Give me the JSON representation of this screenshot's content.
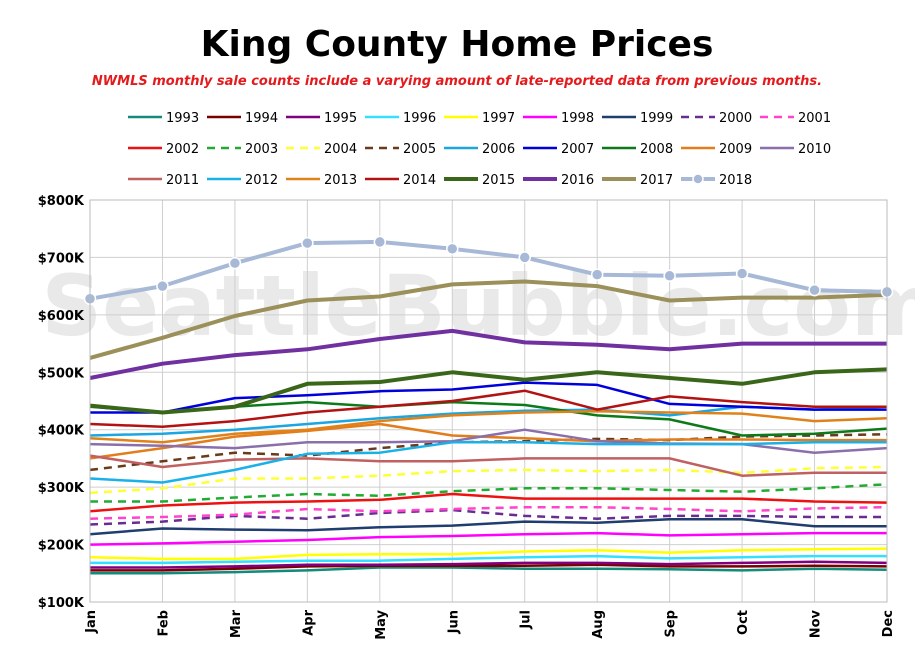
{
  "chart_data": {
    "type": "line",
    "title": "King County Home Prices",
    "subtitle": "NWMLS monthly sale counts include a varying amount of late-reported  data from previous months.",
    "watermark": "SeattleBubble.com",
    "categories": [
      "Jan",
      "Feb",
      "Mar",
      "Apr",
      "May",
      "Jun",
      "Jul",
      "Aug",
      "Sep",
      "Oct",
      "Nov",
      "Dec"
    ],
    "ylim": [
      100000,
      800000
    ],
    "yticks": [
      {
        "value": 100000,
        "label": "$100K"
      },
      {
        "value": 200000,
        "label": "$200K"
      },
      {
        "value": 300000,
        "label": "$300K"
      },
      {
        "value": 400000,
        "label": "$400K"
      },
      {
        "value": 500000,
        "label": "$500K"
      },
      {
        "value": 600000,
        "label": "$600K"
      },
      {
        "value": 700000,
        "label": "$700K"
      },
      {
        "value": 800000,
        "label": "$800K"
      }
    ],
    "grid": true,
    "legend_position": "top",
    "series": [
      {
        "name": "1993",
        "color": "#138a7a",
        "dash": "solid",
        "values": [
          150000,
          150000,
          152000,
          155000,
          160000,
          160000,
          158000,
          158000,
          157000,
          155000,
          158000,
          156000
        ]
      },
      {
        "name": "1994",
        "color": "#7a0000",
        "dash": "solid",
        "values": [
          155000,
          155000,
          158000,
          162000,
          163000,
          163000,
          163000,
          165000,
          162000,
          162000,
          163000,
          162000
        ]
      },
      {
        "name": "1995",
        "color": "#800080",
        "dash": "solid",
        "values": [
          160000,
          160000,
          162000,
          165000,
          165000,
          166000,
          168000,
          168000,
          166000,
          168000,
          170000,
          168000
        ]
      },
      {
        "name": "1996",
        "color": "#33e0ff",
        "dash": "solid",
        "values": [
          168000,
          168000,
          170000,
          172000,
          172000,
          175000,
          178000,
          180000,
          176000,
          178000,
          180000,
          180000
        ]
      },
      {
        "name": "1997",
        "color": "#ffff00",
        "dash": "solid",
        "values": [
          178000,
          175000,
          175000,
          182000,
          183000,
          183000,
          188000,
          190000,
          186000,
          190000,
          192000,
          193000
        ]
      },
      {
        "name": "1998",
        "color": "#ff00ff",
        "dash": "solid",
        "values": [
          200000,
          202000,
          205000,
          208000,
          213000,
          215000,
          218000,
          220000,
          216000,
          218000,
          220000,
          220000
        ]
      },
      {
        "name": "1999",
        "color": "#1f3d6e",
        "dash": "solid",
        "values": [
          218000,
          228000,
          226000,
          225000,
          230000,
          233000,
          240000,
          238000,
          244000,
          244000,
          232000,
          232000
        ]
      },
      {
        "name": "2000",
        "color": "#6a2c91",
        "dash": "dashed",
        "values": [
          235000,
          240000,
          250000,
          245000,
          255000,
          260000,
          250000,
          245000,
          250000,
          250000,
          248000,
          248000
        ]
      },
      {
        "name": "2001",
        "color": "#ff44cc",
        "dash": "dashed",
        "values": [
          245000,
          248000,
          252000,
          262000,
          258000,
          262000,
          265000,
          265000,
          262000,
          258000,
          263000,
          265000
        ]
      },
      {
        "name": "2002",
        "color": "#ee1111",
        "dash": "solid",
        "values": [
          258000,
          268000,
          273000,
          275000,
          278000,
          288000,
          280000,
          280000,
          280000,
          280000,
          275000,
          273000
        ]
      },
      {
        "name": "2003",
        "color": "#22aa33",
        "dash": "dashed",
        "values": [
          275000,
          275000,
          282000,
          288000,
          285000,
          293000,
          298000,
          298000,
          295000,
          292000,
          298000,
          305000
        ]
      },
      {
        "name": "2004",
        "color": "#ffff33",
        "dash": "dashed",
        "values": [
          290000,
          298000,
          315000,
          315000,
          320000,
          328000,
          330000,
          328000,
          330000,
          325000,
          333000,
          335000
        ]
      },
      {
        "name": "2005",
        "color": "#6b3a1a",
        "dash": "dashed",
        "values": [
          330000,
          345000,
          360000,
          355000,
          368000,
          378000,
          380000,
          384000,
          382000,
          388000,
          390000,
          392000
        ]
      },
      {
        "name": "2006",
        "color": "#1aa6e0",
        "dash": "solid",
        "values": [
          390000,
          393000,
          400000,
          410000,
          420000,
          428000,
          433000,
          435000,
          425000,
          440000,
          435000,
          440000
        ]
      },
      {
        "name": "2007",
        "color": "#0000dd",
        "dash": "solid",
        "values": [
          430000,
          430000,
          455000,
          460000,
          467000,
          470000,
          482000,
          478000,
          445000,
          440000,
          435000,
          435000
        ]
      },
      {
        "name": "2008",
        "color": "#0d7a1a",
        "dash": "solid",
        "values": [
          440000,
          430000,
          440000,
          448000,
          440000,
          448000,
          443000,
          425000,
          418000,
          390000,
          393000,
          402000
        ]
      },
      {
        "name": "2009",
        "color": "#e37c1b",
        "dash": "solid",
        "values": [
          350000,
          368000,
          388000,
          398000,
          410000,
          390000,
          385000,
          380000,
          383000,
          383000,
          382000,
          382000
        ]
      },
      {
        "name": "2010",
        "color": "#8a6fab",
        "dash": "solid",
        "values": [
          375000,
          372000,
          368000,
          378000,
          378000,
          380000,
          400000,
          380000,
          376000,
          375000,
          360000,
          368000
        ]
      },
      {
        "name": "2011",
        "color": "#c06060",
        "dash": "solid",
        "values": [
          355000,
          335000,
          348000,
          350000,
          345000,
          345000,
          350000,
          350000,
          350000,
          320000,
          325000,
          325000
        ]
      },
      {
        "name": "2012",
        "color": "#1ab0e8",
        "dash": "solid",
        "values": [
          315000,
          308000,
          330000,
          358000,
          360000,
          378000,
          378000,
          375000,
          375000,
          375000,
          378000,
          378000
        ]
      },
      {
        "name": "2013",
        "color": "#e0821a",
        "dash": "solid",
        "values": [
          385000,
          378000,
          393000,
          400000,
          415000,
          425000,
          430000,
          432000,
          430000,
          428000,
          415000,
          420000
        ]
      },
      {
        "name": "2014",
        "color": "#b31212",
        "dash": "solid",
        "values": [
          410000,
          405000,
          415000,
          430000,
          440000,
          450000,
          468000,
          435000,
          458000,
          448000,
          440000,
          440000
        ]
      },
      {
        "name": "2015",
        "color": "#3a6619",
        "dash": "solid",
        "values": [
          442000,
          430000,
          440000,
          480000,
          483000,
          500000,
          487000,
          500000,
          490000,
          480000,
          500000,
          505000
        ]
      },
      {
        "name": "2016",
        "color": "#7030a0",
        "dash": "solid",
        "values": [
          490000,
          515000,
          530000,
          540000,
          558000,
          572000,
          552000,
          548000,
          540000,
          550000,
          550000,
          550000
        ]
      },
      {
        "name": "2017",
        "color": "#9b8f5a",
        "dash": "solid",
        "values": [
          525000,
          560000,
          598000,
          625000,
          632000,
          653000,
          658000,
          650000,
          625000,
          630000,
          630000,
          635000
        ]
      },
      {
        "name": "2018",
        "color": "#a7b9d6",
        "dash": "solid",
        "marker": "circle",
        "values": [
          628000,
          650000,
          690000,
          725000,
          727000,
          715000,
          700000,
          670000,
          668000,
          672000,
          643000,
          640000
        ]
      }
    ]
  }
}
